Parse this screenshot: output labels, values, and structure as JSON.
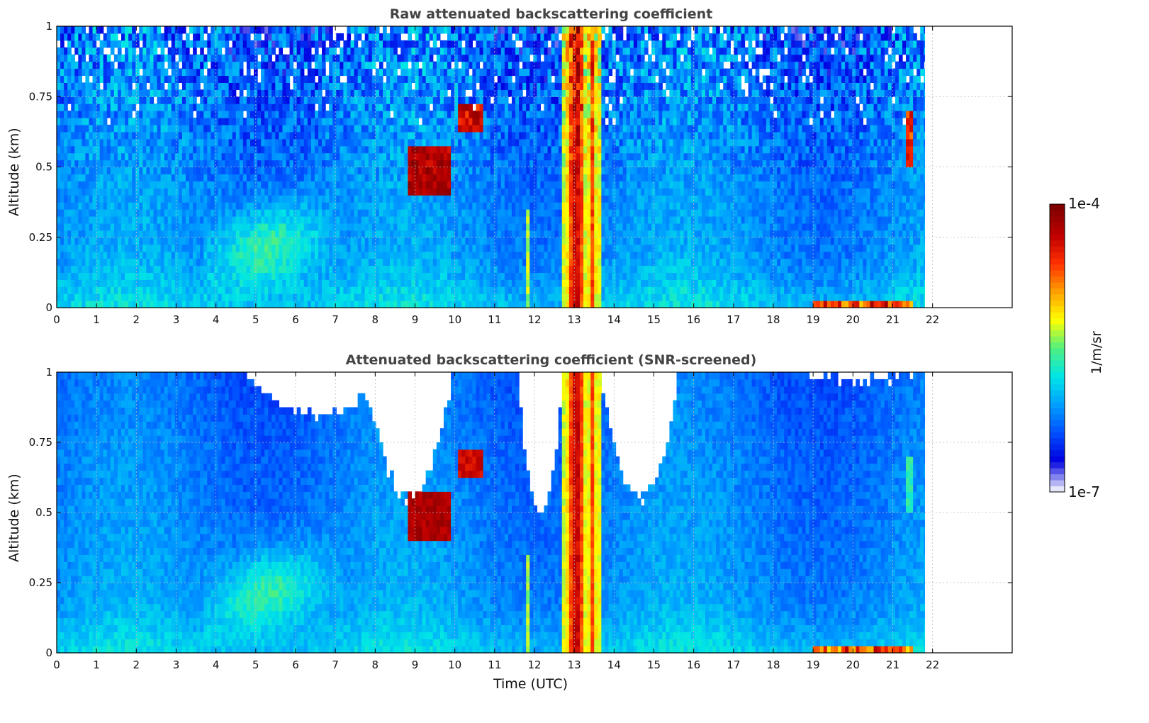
{
  "chart_data": [
    {
      "type": "heatmap",
      "title": "Raw attenuated backscattering coefficient",
      "ylabel": "Altitude (km)",
      "xlabel": "",
      "x_ticks": [
        "0",
        "1",
        "2",
        "3",
        "4",
        "5",
        "6",
        "7",
        "8",
        "9",
        "10",
        "11",
        "12",
        "13",
        "14",
        "15",
        "16",
        "17",
        "18",
        "19",
        "20",
        "21",
        "22"
      ],
      "y_ticks": [
        "0",
        "0.25",
        "0.5",
        "0.75",
        "1"
      ],
      "xlim": [
        0,
        24
      ],
      "ylim": [
        0,
        1
      ],
      "data_end_hour": 21.8,
      "grid": true,
      "snr_screened": false,
      "features": [
        {
          "t": [
            4.0,
            6.5
          ],
          "alt": [
            0.05,
            0.35
          ],
          "level": "light-green"
        },
        {
          "t": [
            8.9,
            9.8
          ],
          "alt": [
            0.4,
            0.58
          ],
          "level": "dark-red"
        },
        {
          "t": [
            10.1,
            10.6
          ],
          "alt": [
            0.6,
            0.72
          ],
          "level": "dark-red"
        },
        {
          "t": [
            12.7,
            13.7
          ],
          "alt": [
            0,
            1
          ],
          "level": "yellow-red-column"
        },
        {
          "t": [
            19.0,
            21.5
          ],
          "alt": [
            0,
            0.03
          ],
          "level": "red-near-surface"
        }
      ]
    },
    {
      "type": "heatmap",
      "title": "Attenuated backscattering coefficient (SNR-screened)",
      "ylabel": "Altitude (km)",
      "xlabel": "Time (UTC)",
      "x_ticks": [
        "0",
        "1",
        "2",
        "3",
        "4",
        "5",
        "6",
        "7",
        "8",
        "9",
        "10",
        "11",
        "12",
        "13",
        "14",
        "15",
        "16",
        "17",
        "18",
        "19",
        "20",
        "21",
        "22"
      ],
      "y_ticks": [
        "0",
        "0.25",
        "0.5",
        "0.75",
        "1"
      ],
      "xlim": [
        0,
        24
      ],
      "ylim": [
        0,
        1
      ],
      "data_end_hour": 21.8,
      "grid": true,
      "snr_screened": true,
      "masked_regions": [
        {
          "t": [
            4.8,
            8.3
          ],
          "alt_min": 0.85
        },
        {
          "t": [
            7.8,
            9.9
          ],
          "alt_min": 0.55
        },
        {
          "t": [
            11.6,
            12.7
          ],
          "alt_min": 0.5
        },
        {
          "t": [
            13.7,
            15.6
          ],
          "alt_min": 0.55
        },
        {
          "t": [
            18.8,
            21.6
          ],
          "alt_min": 0.97
        }
      ]
    }
  ],
  "colorbar": {
    "label": "1/m/sr",
    "max_label": "1e-4",
    "min_label": "1e-7",
    "colormap": [
      "#e6e6fa",
      "#0000e0",
      "#0050ff",
      "#00a0ff",
      "#00e6e6",
      "#50f080",
      "#ffff00",
      "#ffa000",
      "#ff3000",
      "#c00000",
      "#800000"
    ]
  }
}
